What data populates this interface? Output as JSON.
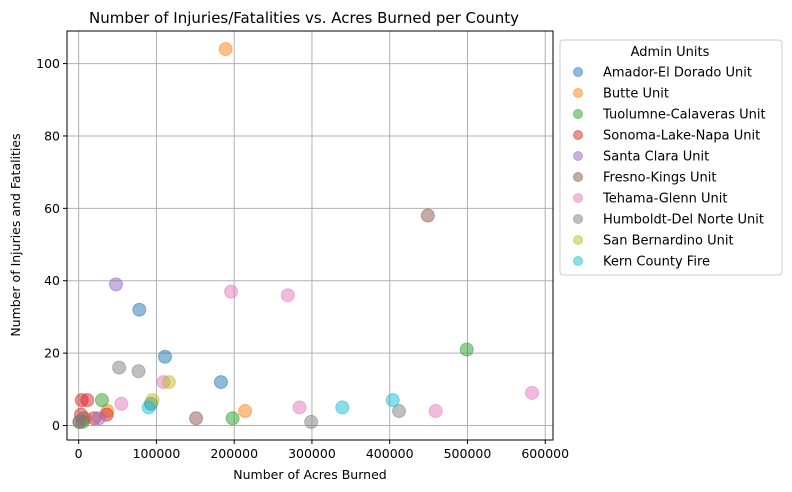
{
  "chart_data": {
    "type": "scatter",
    "title": "Number of Injuries/Fatalities vs. Acres Burned per County",
    "xlabel": "Number of Acres Burned",
    "ylabel": "Number of Injuries and Fatalities",
    "xlim": [
      -15000,
      610000
    ],
    "ylim": [
      -4,
      109
    ],
    "xticks": [
      0,
      100000,
      200000,
      300000,
      400000,
      500000,
      600000
    ],
    "yticks": [
      0,
      20,
      40,
      60,
      80,
      100
    ],
    "grid": true,
    "legend": {
      "title": "Admin Units",
      "placement": "outside-right"
    },
    "series": [
      {
        "name": "Amador-El Dorado Unit",
        "color": "#1f77b4",
        "points": [
          [
            78000,
            32
          ],
          [
            111000,
            19
          ],
          [
            183000,
            12
          ],
          [
            93000,
            6
          ]
        ]
      },
      {
        "name": "Butte Unit",
        "color": "#ff7f0e",
        "points": [
          [
            189000,
            104
          ],
          [
            214000,
            4
          ],
          [
            37000,
            4
          ],
          [
            8000,
            2
          ]
        ]
      },
      {
        "name": "Tuolumne-Calaveras Unit",
        "color": "#2ca02c",
        "points": [
          [
            499000,
            21
          ],
          [
            30000,
            7
          ],
          [
            198000,
            2
          ],
          [
            5000,
            1
          ]
        ]
      },
      {
        "name": "Sonoma-Lake-Napa Unit",
        "color": "#d62728",
        "points": [
          [
            4000,
            7
          ],
          [
            11000,
            7
          ],
          [
            36000,
            3
          ],
          [
            3000,
            3
          ],
          [
            20000,
            2
          ]
        ]
      },
      {
        "name": "Santa Clara Unit",
        "color": "#9467bd",
        "points": [
          [
            48000,
            39
          ],
          [
            26000,
            2
          ]
        ]
      },
      {
        "name": "Fresno-Kings Unit",
        "color": "#8c564b",
        "points": [
          [
            449000,
            58
          ],
          [
            151000,
            2
          ],
          [
            1000,
            1
          ]
        ]
      },
      {
        "name": "Tehama-Glenn Unit",
        "color": "#e377c2",
        "points": [
          [
            196000,
            37
          ],
          [
            269000,
            36
          ],
          [
            109000,
            12
          ],
          [
            55000,
            6
          ],
          [
            284000,
            5
          ],
          [
            459000,
            4
          ],
          [
            583000,
            9
          ]
        ]
      },
      {
        "name": "Humboldt-Del Norte Unit",
        "color": "#7f7f7f",
        "points": [
          [
            52000,
            16
          ],
          [
            77000,
            15
          ],
          [
            412000,
            4
          ],
          [
            299000,
            1
          ],
          [
            6000,
            2
          ],
          [
            1000,
            1
          ]
        ]
      },
      {
        "name": "San Bernardino Unit",
        "color": "#bcbd22",
        "points": [
          [
            116000,
            12
          ],
          [
            95000,
            7
          ]
        ]
      },
      {
        "name": "Kern County Fire",
        "color": "#17becf",
        "points": [
          [
            339000,
            5
          ],
          [
            404000,
            7
          ],
          [
            90000,
            5
          ]
        ]
      }
    ]
  }
}
